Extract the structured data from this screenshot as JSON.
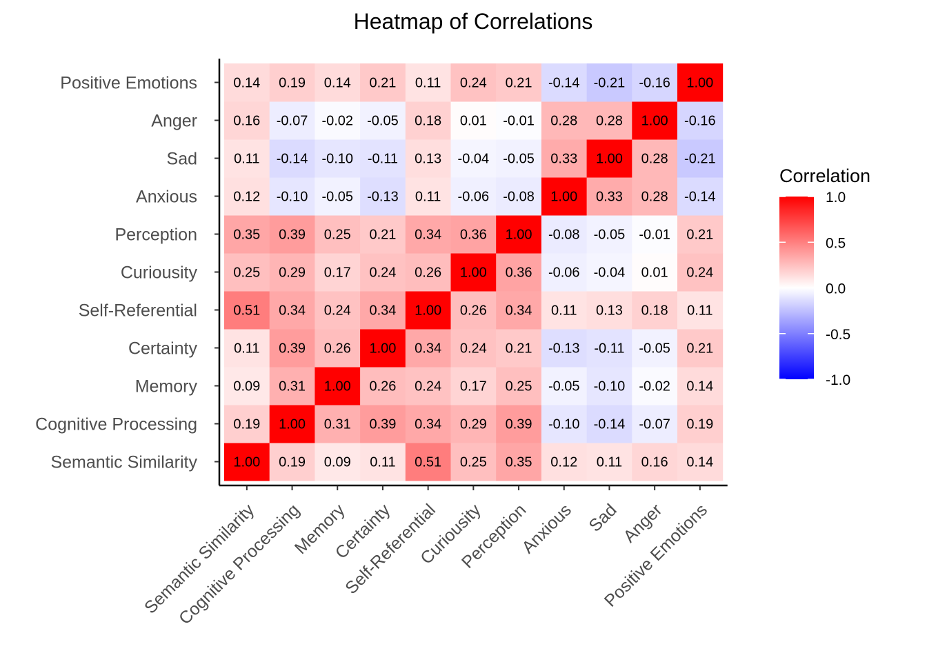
{
  "chart_data": {
    "type": "heatmap",
    "title": "Heatmap of Correlations",
    "x_labels": [
      "Semantic Similarity",
      "Cognitive Processing",
      "Memory",
      "Certainty",
      "Self-Referential",
      "Curiousity",
      "Perception",
      "Anxious",
      "Sad",
      "Anger",
      "Positive Emotions"
    ],
    "y_labels": [
      "Semantic Similarity",
      "Cognitive Processing",
      "Memory",
      "Certainty",
      "Self-Referential",
      "Curiousity",
      "Perception",
      "Anxious",
      "Sad",
      "Anger",
      "Positive Emotions"
    ],
    "values": [
      [
        1.0,
        0.19,
        0.09,
        0.11,
        0.51,
        0.25,
        0.35,
        0.12,
        0.11,
        0.16,
        0.14
      ],
      [
        0.19,
        1.0,
        0.31,
        0.39,
        0.34,
        0.29,
        0.39,
        -0.1,
        -0.14,
        -0.07,
        0.19
      ],
      [
        0.09,
        0.31,
        1.0,
        0.26,
        0.24,
        0.17,
        0.25,
        -0.05,
        -0.1,
        -0.02,
        0.14
      ],
      [
        0.11,
        0.39,
        0.26,
        1.0,
        0.34,
        0.24,
        0.21,
        -0.13,
        -0.11,
        -0.05,
        0.21
      ],
      [
        0.51,
        0.34,
        0.24,
        0.34,
        1.0,
        0.26,
        0.34,
        0.11,
        0.13,
        0.18,
        0.11
      ],
      [
        0.25,
        0.29,
        0.17,
        0.24,
        0.26,
        1.0,
        0.36,
        -0.06,
        -0.04,
        0.01,
        0.24
      ],
      [
        0.35,
        0.39,
        0.25,
        0.21,
        0.34,
        0.36,
        1.0,
        -0.08,
        -0.05,
        -0.01,
        0.21
      ],
      [
        0.12,
        -0.1,
        -0.05,
        -0.13,
        0.11,
        -0.06,
        -0.08,
        1.0,
        0.33,
        0.28,
        -0.14
      ],
      [
        0.11,
        -0.14,
        -0.1,
        -0.11,
        0.13,
        -0.04,
        -0.05,
        0.33,
        1.0,
        0.28,
        -0.21
      ],
      [
        0.16,
        -0.07,
        -0.02,
        -0.05,
        0.18,
        0.01,
        -0.01,
        0.28,
        0.28,
        1.0,
        -0.16
      ],
      [
        0.14,
        0.19,
        0.14,
        0.21,
        0.11,
        0.24,
        0.21,
        -0.14,
        -0.21,
        -0.16,
        1.0
      ]
    ],
    "legend": {
      "title": "Correlation",
      "ticks": [
        "1.0",
        "0.5",
        "0.0",
        "-0.5",
        "-1.0"
      ],
      "tick_values": [
        1.0,
        0.5,
        0.0,
        -0.5,
        -1.0
      ],
      "range": [
        -1,
        1
      ],
      "placement": "right"
    },
    "colors": {
      "low": "#0000ff",
      "mid": "#ffffff",
      "high": "#ff0000"
    },
    "grid": false
  }
}
